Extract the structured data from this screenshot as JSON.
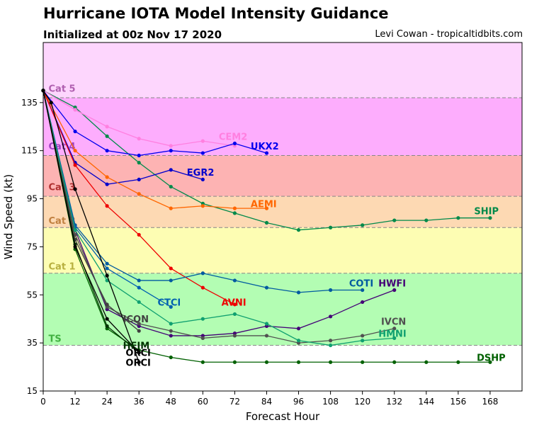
{
  "title": "Hurricane IOTA Model Intensity Guidance",
  "subtitle": "Initialized at 00z Nov 17 2020",
  "credit": "Levi Cowan - tropicaltidbits.com",
  "colors": {
    "band_cat5": "#fdd6fd",
    "band_cat4": "#fdadfd",
    "band_cat3": "#fdb3b3",
    "band_cat2": "#fdd9b3",
    "band_cat1": "#fdfdb3",
    "band_ts": "#b3fdb3",
    "band_td": "#ffffff"
  },
  "chart_data": {
    "type": "line",
    "xlabel": "Forecast Hour",
    "ylabel": "Wind Speed (kt)",
    "xlim": [
      0,
      180
    ],
    "ylim": [
      15,
      160
    ],
    "xticks": [
      0,
      12,
      24,
      36,
      48,
      60,
      72,
      84,
      96,
      108,
      120,
      132,
      144,
      156,
      168
    ],
    "yticks": [
      15,
      35,
      55,
      75,
      95,
      115,
      135
    ],
    "grid": false,
    "categories": [
      {
        "name": "Cat 5",
        "from": 137,
        "to": 160,
        "color": "#fdd6fd",
        "label_color": "#b05fb0",
        "label_y": 141
      },
      {
        "name": "Cat 4",
        "from": 113,
        "to": 137,
        "color": "#fdadfd",
        "label_color": "#a040c0",
        "label_y": 117
      },
      {
        "name": "Cat 3",
        "from": 96,
        "to": 113,
        "color": "#fdb3b3",
        "label_color": "#b03030",
        "label_y": 100
      },
      {
        "name": "Cat 2",
        "from": 83,
        "to": 96,
        "color": "#fdd9b3",
        "label_color": "#c08040",
        "label_y": 86
      },
      {
        "name": "Cat 1",
        "from": 64,
        "to": 83,
        "color": "#fdfdb3",
        "label_color": "#b8b040",
        "label_y": 67
      },
      {
        "name": "TS",
        "from": 34,
        "to": 64,
        "color": "#b3fdb3",
        "label_color": "#40b040",
        "label_y": 37
      }
    ],
    "series": [
      {
        "name": "SHIP",
        "color": "#008a4a",
        "label_x": 162,
        "label_y": 90,
        "x": [
          0,
          12,
          24,
          36,
          48,
          60,
          72,
          84,
          96,
          108,
          120,
          132,
          144,
          156,
          168
        ],
        "y": [
          140,
          133,
          121,
          110,
          100,
          93,
          89,
          85,
          82,
          83,
          84,
          86,
          86,
          87,
          87
        ]
      },
      {
        "name": "CEM2",
        "color": "#ff80e0",
        "label_x": 66,
        "label_y": 121,
        "x": [
          0,
          12,
          24,
          36,
          48,
          60,
          72
        ],
        "y": [
          140,
          132,
          125,
          120,
          117,
          119,
          117
        ]
      },
      {
        "name": "UKX2",
        "color": "#0000ee",
        "label_x": 78,
        "label_y": 117,
        "x": [
          0,
          12,
          24,
          36,
          48,
          60,
          72,
          84
        ],
        "y": [
          140,
          123,
          115,
          113,
          115,
          114,
          118,
          114
        ]
      },
      {
        "name": "EGR2",
        "color": "#0000cc",
        "label_x": 54,
        "label_y": 106,
        "x": [
          0,
          12,
          24,
          36,
          48,
          60
        ],
        "y": [
          140,
          110,
          101,
          103,
          107,
          103
        ]
      },
      {
        "name": "AEMI",
        "color": "#ff6600",
        "label_x": 78,
        "label_y": 93,
        "x": [
          0,
          12,
          24,
          36,
          48,
          60,
          72,
          84
        ],
        "y": [
          140,
          115,
          104,
          97,
          91,
          92,
          91,
          91
        ]
      },
      {
        "name": "AVNI",
        "color": "#ee0000",
        "label_x": 67,
        "label_y": 52,
        "x": [
          0,
          12,
          24,
          36,
          48,
          60,
          72
        ],
        "y": [
          140,
          109,
          92,
          80,
          66,
          58,
          51
        ]
      },
      {
        "name": "COTI",
        "color": "#005aa0",
        "label_x": 115,
        "label_y": 60,
        "x": [
          0,
          12,
          24,
          36,
          48,
          60,
          72,
          84,
          96,
          108,
          120
        ],
        "y": [
          140,
          84,
          68,
          61,
          61,
          64,
          61,
          58,
          56,
          57,
          57
        ]
      },
      {
        "name": "HWFI",
        "color": "#440077",
        "label_x": 126,
        "label_y": 60,
        "x": [
          0,
          12,
          24,
          36,
          48,
          60,
          72,
          84,
          96,
          108,
          120,
          132
        ],
        "y": [
          140,
          82,
          49,
          42,
          38,
          38,
          39,
          42,
          41,
          46,
          52,
          57
        ]
      },
      {
        "name": "CTCI",
        "color": "#0060b0",
        "label_x": 43,
        "label_y": 52,
        "x": [
          0,
          12,
          24,
          36,
          48
        ],
        "y": [
          140,
          83,
          66,
          58,
          50
        ]
      },
      {
        "name": "IVCN",
        "color": "#505050",
        "label_x": 127,
        "label_y": 44,
        "x": [
          0,
          12,
          24,
          36,
          48,
          60,
          72,
          84,
          96,
          108,
          120,
          132
        ],
        "y": [
          140,
          80,
          50,
          43,
          40,
          37,
          38,
          38,
          35,
          36,
          38,
          41
        ]
      },
      {
        "name": "HMNI",
        "color": "#10a070",
        "label_x": 126,
        "label_y": 39,
        "x": [
          0,
          12,
          24,
          36,
          48,
          60,
          72,
          84,
          96,
          108,
          120,
          132
        ],
        "y": [
          140,
          82,
          61,
          52,
          43,
          45,
          47,
          43,
          36,
          34,
          36,
          37
        ]
      },
      {
        "name": "ICON",
        "color": "#404040",
        "label_x": 30,
        "label_y": 45,
        "x": [
          0,
          12,
          24,
          36
        ],
        "y": [
          140,
          78,
          51,
          40
        ]
      },
      {
        "name": "DSHP",
        "color": "#006000",
        "label_x": 163,
        "label_y": 29,
        "x": [
          0,
          12,
          24,
          36,
          48,
          60,
          72,
          84,
          96,
          108,
          120,
          132,
          144,
          156,
          168
        ],
        "y": [
          140,
          74,
          41,
          32,
          29,
          27,
          27,
          27,
          27,
          27,
          27,
          27,
          27,
          27,
          27
        ]
      },
      {
        "name": "HFIM",
        "color": "#003300",
        "label_x": 30,
        "label_y": 34,
        "x": [
          0,
          12,
          24,
          36
        ],
        "y": [
          140,
          76,
          42,
          31
        ]
      },
      {
        "name": "ORCI",
        "color": "#000000",
        "label_x": 31,
        "label_y": 31,
        "x": [
          0,
          3,
          12,
          24,
          36
        ],
        "y": [
          140,
          135,
          99,
          63,
          27
        ]
      },
      {
        "name": "ORCI",
        "color": "#000000",
        "label_x": 31,
        "label_y": 27,
        "x": [
          0,
          12,
          24,
          36
        ],
        "y": [
          140,
          75,
          45,
          31
        ]
      }
    ]
  }
}
